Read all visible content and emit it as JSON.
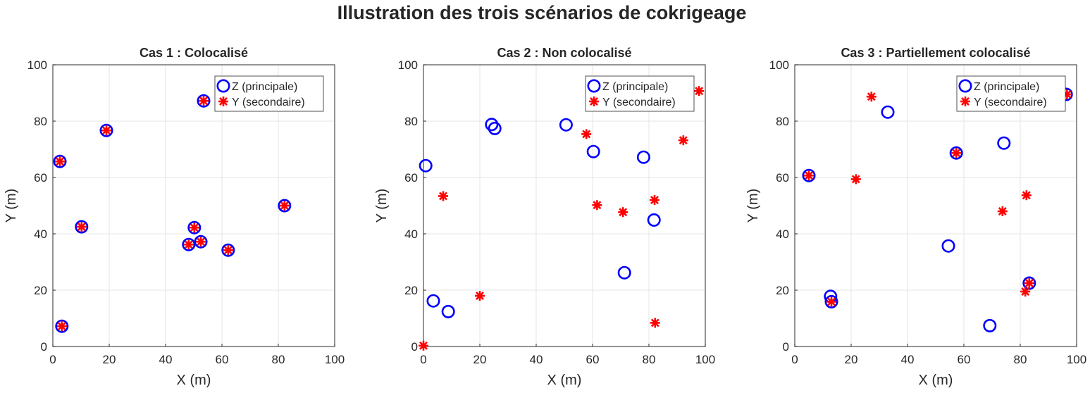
{
  "figure_title": "Illustration des trois scénarios de cokrigeage",
  "colors": {
    "Z": "#0000ff",
    "Y": "#ff0000",
    "grid": "#e6e6e6",
    "axes": "#262626"
  },
  "chart_data": [
    {
      "type": "scatter",
      "title": "Cas 1 : Colocalisé",
      "xlabel": "X (m)",
      "ylabel": "Y (m)",
      "xlim": [
        0,
        100
      ],
      "ylim": [
        0,
        100
      ],
      "xticks": [
        "0",
        "20",
        "40",
        "60",
        "80",
        "100"
      ],
      "yticks": [
        "0",
        "20",
        "40",
        "60",
        "80",
        "100"
      ],
      "grid": true,
      "legend": "top-right",
      "series": [
        {
          "name": "Z (principale)",
          "marker": "circle",
          "x": [
            2.5,
            19,
            10.2,
            3.2,
            53.5,
            50.2,
            48.2,
            52.5,
            62.2,
            82.2
          ],
          "y": [
            65.7,
            76.7,
            42.5,
            7.2,
            87.2,
            42.2,
            36.2,
            37.2,
            34.2,
            50
          ]
        },
        {
          "name": "Y (secondaire)",
          "marker": "asterisk",
          "x": [
            2.5,
            19,
            10.2,
            3.2,
            53.5,
            50.2,
            48.2,
            52.5,
            62.2,
            82.2
          ],
          "y": [
            65.7,
            76.7,
            42.5,
            7.2,
            87.2,
            42.2,
            36.2,
            37.2,
            34.2,
            50
          ]
        }
      ]
    },
    {
      "type": "scatter",
      "title": "Cas 2 : Non colocalisé",
      "xlabel": "X (m)",
      "ylabel": "Y (m)",
      "xlim": [
        0,
        100
      ],
      "ylim": [
        0,
        100
      ],
      "xticks": [
        "0",
        "20",
        "40",
        "60",
        "80",
        "100"
      ],
      "yticks": [
        "0",
        "20",
        "40",
        "60",
        "80",
        "100"
      ],
      "grid": true,
      "legend": "top-right",
      "series": [
        {
          "name": "Z (principale)",
          "marker": "circle",
          "x": [
            0.8,
            3.5,
            8.8,
            24.2,
            25.3,
            50.6,
            60.3,
            78.1,
            81.8,
            71.3
          ],
          "y": [
            64.2,
            16.2,
            12.4,
            78.8,
            77.4,
            78.7,
            69.2,
            67.2,
            44.9,
            26.2
          ]
        },
        {
          "name": "Y (secondaire)",
          "marker": "asterisk",
          "x": [
            0,
            7,
            20,
            57.8,
            61.6,
            70.8,
            82,
            92.2,
            97.8,
            82.2
          ],
          "y": [
            0.3,
            53.4,
            18,
            75.4,
            50.2,
            47.7,
            52,
            73.2,
            90.7,
            8.4
          ]
        }
      ]
    },
    {
      "type": "scatter",
      "title": "Cas 3 : Partiellement colocalisé",
      "xlabel": "X (m)",
      "ylabel": "Y (m)",
      "xlim": [
        0,
        100
      ],
      "ylim": [
        0,
        100
      ],
      "xticks": [
        "0",
        "20",
        "40",
        "60",
        "80",
        "100"
      ],
      "yticks": [
        "0",
        "20",
        "40",
        "60",
        "80",
        "100"
      ],
      "grid": true,
      "legend": "top-right",
      "series": [
        {
          "name": "Z (principale)",
          "marker": "circle",
          "x": [
            5,
            12.7,
            13,
            33,
            57.3,
            54.5,
            74.2,
            69.2,
            83.2,
            96.3
          ],
          "y": [
            60.7,
            17.8,
            15.9,
            83.2,
            68.7,
            35.7,
            72.2,
            7.4,
            22.5,
            89.5
          ]
        },
        {
          "name": "Y (secondaire)",
          "marker": "asterisk",
          "x": [
            5,
            13,
            27.2,
            21.7,
            57.3,
            73.7,
            82.2,
            81.8,
            83.2,
            96.6
          ],
          "y": [
            60.7,
            15.9,
            88.7,
            59.4,
            68.7,
            48,
            53.7,
            19.5,
            22.5,
            89.5
          ]
        }
      ]
    }
  ]
}
